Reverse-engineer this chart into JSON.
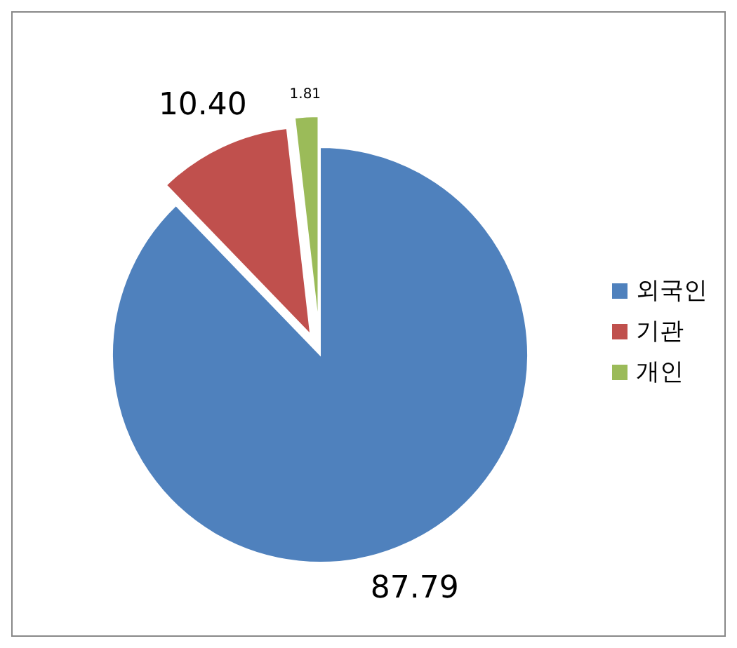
{
  "chart_data": {
    "type": "pie",
    "categories": [
      "외국인",
      "기관",
      "개인"
    ],
    "values": [
      87.79,
      10.4,
      1.81
    ],
    "colors": [
      "#4f81bd",
      "#c0504d",
      "#9bbb59"
    ],
    "value_labels": [
      "87.79",
      "10.40",
      "1.81"
    ],
    "legend": "right"
  }
}
